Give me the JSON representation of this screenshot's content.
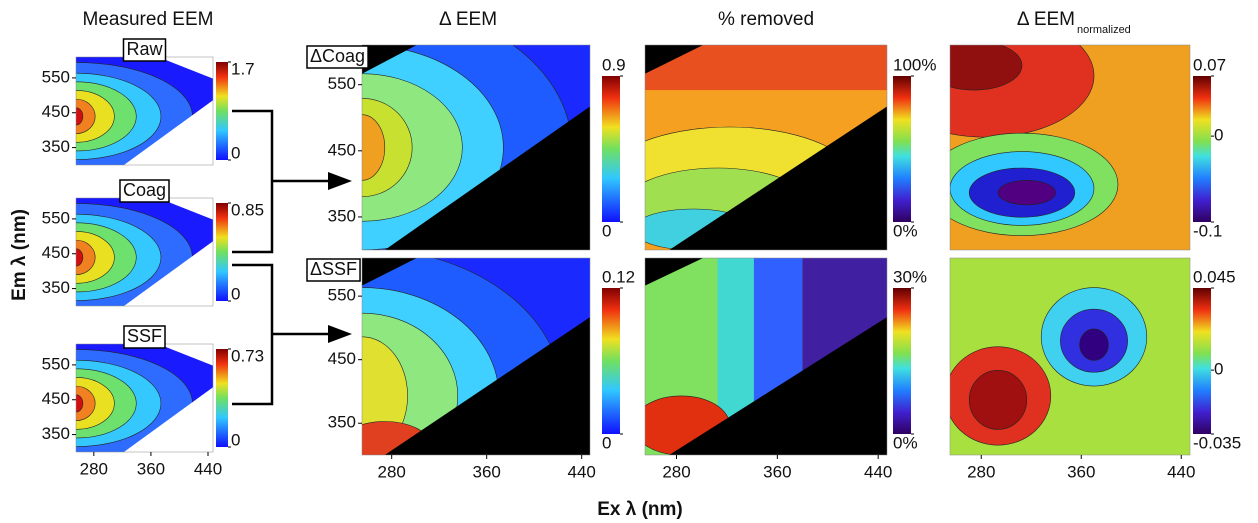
{
  "titles": {
    "measured": "Measured EEM",
    "delta": "Δ EEM",
    "removed": "% removed",
    "normalized": "Δ EEM",
    "normalized_subscript": "normalized"
  },
  "y_label": "Em λ (nm)",
  "x_label": "Ex λ (nm)",
  "chart_data": [
    {
      "type": "contour",
      "label": "Raw",
      "xlim": [
        255,
        447
      ],
      "ylim": [
        300,
        610
      ],
      "yticks": [
        350,
        450,
        550
      ],
      "colorbar": {
        "lim": [
          0,
          1.7
        ],
        "ticks": [
          0,
          1.7
        ]
      }
    },
    {
      "type": "contour",
      "label": "Coag",
      "xlim": [
        255,
        447
      ],
      "ylim": [
        300,
        610
      ],
      "yticks": [
        350,
        450,
        550
      ],
      "colorbar": {
        "lim": [
          0,
          0.85
        ],
        "ticks": [
          0,
          0.85
        ]
      }
    },
    {
      "type": "contour",
      "label": "SSF",
      "xlim": [
        255,
        447
      ],
      "ylim": [
        300,
        610
      ],
      "yticks": [
        350,
        450,
        550
      ],
      "xticks": [
        280,
        360,
        440
      ],
      "colorbar": {
        "lim": [
          0,
          0.73
        ],
        "ticks": [
          0,
          0.73
        ]
      }
    },
    {
      "type": "contour",
      "label": "ΔCoag",
      "xlim": [
        255,
        447
      ],
      "ylim": [
        300,
        610
      ],
      "yticks": [
        350,
        450,
        550
      ],
      "colorbar": {
        "lim": [
          0,
          0.9
        ],
        "ticks": [
          0,
          0.9
        ]
      }
    },
    {
      "type": "contour",
      "label": "ΔSSF",
      "xlim": [
        255,
        447
      ],
      "ylim": [
        300,
        610
      ],
      "yticks": [
        350,
        450,
        550
      ],
      "xticks": [
        280,
        360,
        440
      ],
      "colorbar": {
        "lim": [
          0,
          0.12
        ],
        "ticks": [
          0,
          0.12
        ]
      }
    },
    {
      "type": "contour",
      "xlim": [
        255,
        447
      ],
      "ylim": [
        300,
        610
      ],
      "colorbar": {
        "lim": [
          0,
          100
        ],
        "ticks": [
          {
            "value": 0,
            "label": "0%"
          },
          {
            "value": 100,
            "label": "100%"
          }
        ]
      }
    },
    {
      "type": "contour",
      "xlim": [
        255,
        447
      ],
      "ylim": [
        300,
        610
      ],
      "xticks": [
        280,
        360,
        440
      ],
      "colorbar": {
        "lim": [
          0,
          30
        ],
        "ticks": [
          {
            "value": 0,
            "label": "0%"
          },
          {
            "value": 30,
            "label": "30%"
          }
        ]
      }
    },
    {
      "type": "contour",
      "xlim": [
        255,
        447
      ],
      "ylim": [
        300,
        610
      ],
      "colorbar": {
        "lim": [
          -0.1,
          0.07
        ],
        "ticks": [
          -0.1,
          0,
          0.07
        ]
      }
    },
    {
      "type": "contour",
      "xlim": [
        255,
        447
      ],
      "ylim": [
        300,
        610
      ],
      "xticks": [
        280,
        360,
        440
      ],
      "colorbar": {
        "lim": [
          -0.035,
          0.045
        ],
        "ticks": [
          -0.035,
          0,
          0.045
        ]
      }
    }
  ]
}
